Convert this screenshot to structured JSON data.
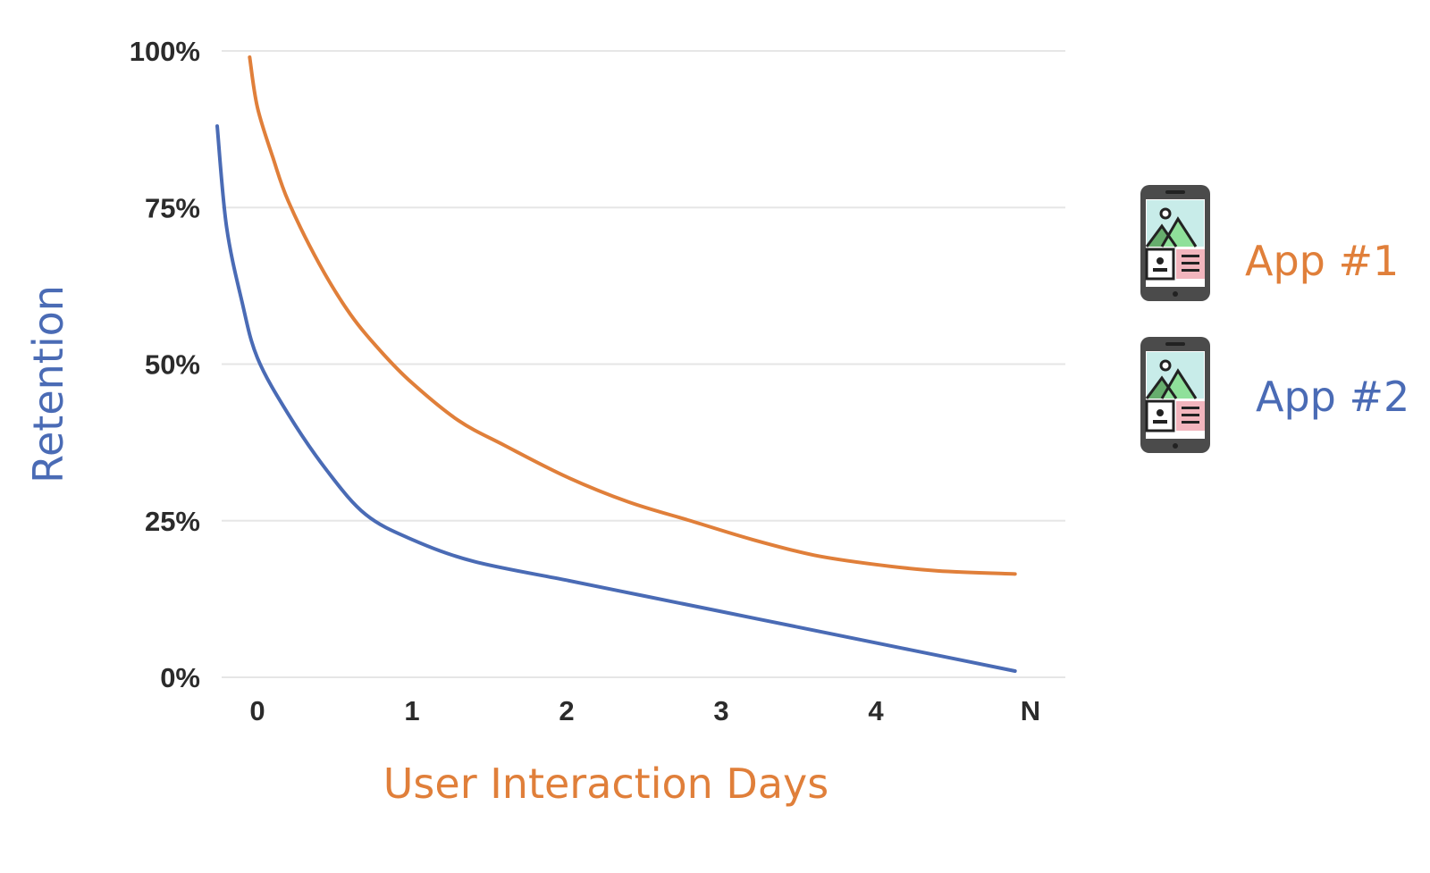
{
  "chart_data": {
    "type": "line",
    "title": "",
    "xlabel": "User Interaction Days",
    "ylabel": "Retention",
    "x_ticks": [
      "0",
      "1",
      "2",
      "3",
      "4",
      "N"
    ],
    "y_ticks": [
      "0%",
      "25%",
      "50%",
      "75%",
      "100%"
    ],
    "ylim": [
      0,
      100
    ],
    "grid": true,
    "legend_position": "right",
    "series": [
      {
        "name": "App #1",
        "color": "#e07f3a",
        "icon": "smartphone-icon",
        "points": [
          {
            "x": -0.05,
            "y": 99
          },
          {
            "x": 0.0,
            "y": 91
          },
          {
            "x": 0.1,
            "y": 83
          },
          {
            "x": 0.2,
            "y": 76
          },
          {
            "x": 0.4,
            "y": 66
          },
          {
            "x": 0.6,
            "y": 58
          },
          {
            "x": 0.8,
            "y": 52
          },
          {
            "x": 1.0,
            "y": 47
          },
          {
            "x": 1.3,
            "y": 41
          },
          {
            "x": 1.6,
            "y": 37
          },
          {
            "x": 2.0,
            "y": 32
          },
          {
            "x": 2.4,
            "y": 28
          },
          {
            "x": 2.8,
            "y": 25
          },
          {
            "x": 3.2,
            "y": 22
          },
          {
            "x": 3.6,
            "y": 19.5
          },
          {
            "x": 4.0,
            "y": 18
          },
          {
            "x": 4.4,
            "y": 17
          },
          {
            "x": 4.9,
            "y": 16.5
          }
        ]
      },
      {
        "name": "App #2",
        "color": "#4a6bb5",
        "icon": "smartphone-icon",
        "points": [
          {
            "x": -0.26,
            "y": 88
          },
          {
            "x": -0.2,
            "y": 72
          },
          {
            "x": -0.1,
            "y": 60
          },
          {
            "x": 0.0,
            "y": 51
          },
          {
            "x": 0.2,
            "y": 42
          },
          {
            "x": 0.45,
            "y": 33
          },
          {
            "x": 0.7,
            "y": 26
          },
          {
            "x": 1.0,
            "y": 22
          },
          {
            "x": 1.4,
            "y": 18.5
          },
          {
            "x": 2.0,
            "y": 15.5
          },
          {
            "x": 2.5,
            "y": 13
          },
          {
            "x": 3.0,
            "y": 10.5
          },
          {
            "x": 3.5,
            "y": 8
          },
          {
            "x": 4.0,
            "y": 5.5
          },
          {
            "x": 4.5,
            "y": 3
          },
          {
            "x": 4.9,
            "y": 1
          }
        ]
      }
    ]
  }
}
